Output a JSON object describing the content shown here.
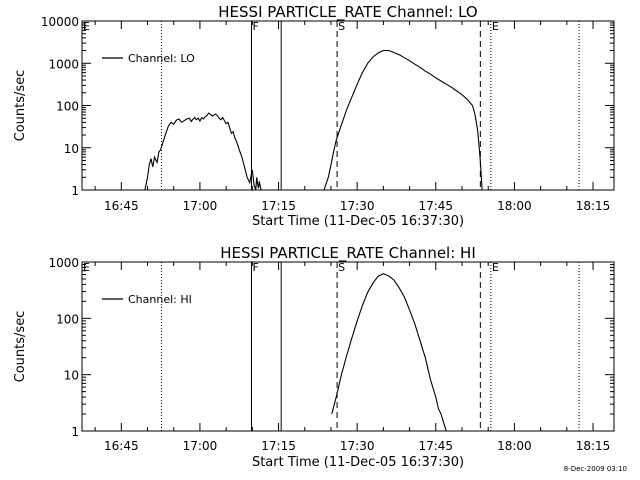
{
  "footer_stamp": "8-Dec-2009 03:10",
  "chart_data": [
    {
      "type": "line",
      "title": "HESSI PARTICLE_RATE Channel: LO",
      "xlabel": "Start Time (11-Dec-05 16:37:30)",
      "ylabel": "Counts/sec",
      "yscale": "log",
      "ylim": [
        1,
        10000
      ],
      "xlim": [
        "16:37:30",
        "18:19:00"
      ],
      "xticks": [
        "16:45",
        "17:00",
        "17:15",
        "17:30",
        "17:45",
        "18:00",
        "18:15"
      ],
      "yticks": [
        "1",
        "10",
        "100",
        "1000",
        "10000"
      ],
      "legend": {
        "position": "top-left",
        "entries": [
          "Channel: LO"
        ]
      },
      "markers": [
        {
          "time": "16:37:30",
          "label": "E",
          "style": "dotted"
        },
        {
          "time": "16:52:40",
          "label": "",
          "style": "dotted"
        },
        {
          "time": "17:09:50",
          "label": "F",
          "style": "solid"
        },
        {
          "time": "17:15:30",
          "label": "",
          "style": "solid"
        },
        {
          "time": "17:26:10",
          "label": "S",
          "style": "dashed"
        },
        {
          "time": "17:53:30",
          "label": "",
          "style": "dashed"
        },
        {
          "time": "17:55:30",
          "label": "E",
          "style": "dotted"
        },
        {
          "time": "18:12:20",
          "label": "",
          "style": "dotted"
        }
      ],
      "series": [
        {
          "name": "Channel: LO",
          "segments": [
            {
              "x": [
                "16:49:30",
                "16:50:00",
                "16:50:20",
                "16:50:40",
                "16:51:00",
                "16:51:20",
                "16:51:50",
                "16:52:10",
                "16:52:30",
                "16:53:00",
                "16:53:30",
                "16:54:00",
                "16:54:30",
                "16:55:00",
                "16:55:30",
                "16:56:00",
                "16:56:30",
                "16:57:00",
                "16:57:30",
                "16:58:00",
                "16:58:20",
                "16:58:40",
                "16:59:00",
                "16:59:20",
                "16:59:40",
                "17:00:00",
                "17:00:20",
                "17:00:40",
                "17:01:00",
                "17:01:20",
                "17:01:40",
                "17:02:00",
                "17:02:20",
                "17:02:40",
                "17:03:00",
                "17:03:20",
                "17:03:40",
                "17:04:00",
                "17:04:20",
                "17:04:40",
                "17:05:00",
                "17:05:20",
                "17:05:40",
                "17:06:00",
                "17:06:20",
                "17:06:40",
                "17:07:00",
                "17:07:30",
                "17:08:00",
                "17:08:30",
                "17:09:00",
                "17:09:30",
                "17:10:00",
                "17:10:20",
                "17:10:40",
                "17:10:50",
                "17:11:00",
                "17:11:10",
                "17:11:20",
                "17:11:40"
              ],
              "y": [
                1,
                2,
                4,
                5.5,
                3.5,
                6,
                4.5,
                8,
                9,
                14,
                22,
                33,
                40,
                36,
                45,
                48,
                40,
                44,
                48,
                50,
                42,
                47,
                52,
                46,
                50,
                43,
                52,
                48,
                54,
                58,
                66,
                62,
                56,
                60,
                63,
                57,
                50,
                46,
                52,
                44,
                37,
                40,
                30,
                22,
                24,
                17,
                14,
                9,
                6,
                3.5,
                2,
                1.5,
                3,
                1.3,
                1,
                2,
                1.4,
                1.1,
                1.6,
                1
              ]
            },
            {
              "x": [
                "17:23:40",
                "17:24:30",
                "17:25:00",
                "17:25:30",
                "17:26:00",
                "17:27:00",
                "17:28:00",
                "17:29:00",
                "17:30:00",
                "17:31:00",
                "17:32:00",
                "17:33:00",
                "17:34:00",
                "17:35:00",
                "17:36:00",
                "17:37:00",
                "17:38:00",
                "17:39:00",
                "17:40:00",
                "17:41:00",
                "17:42:00",
                "17:43:00",
                "17:44:00",
                "17:45:00",
                "17:46:00",
                "17:47:00",
                "17:48:00",
                "17:49:00",
                "17:50:00",
                "17:51:00",
                "17:52:00",
                "17:52:30",
                "17:53:00",
                "17:53:30",
                "17:53:50"
              ],
              "y": [
                1,
                2,
                4,
                8,
                15,
                35,
                80,
                160,
                320,
                600,
                1000,
                1400,
                1750,
                2000,
                2000,
                1800,
                1600,
                1350,
                1150,
                950,
                800,
                650,
                550,
                450,
                380,
                320,
                270,
                220,
                180,
                140,
                100,
                60,
                25,
                5,
                1
              ]
            }
          ]
        }
      ]
    },
    {
      "type": "line",
      "title": "HESSI PARTICLE_RATE Channel: HI",
      "xlabel": "Start Time (11-Dec-05 16:37:30)",
      "ylabel": "Counts/sec",
      "yscale": "log",
      "ylim": [
        1,
        1000
      ],
      "xlim": [
        "16:37:30",
        "18:19:00"
      ],
      "xticks": [
        "16:45",
        "17:00",
        "17:15",
        "17:30",
        "17:45",
        "18:00",
        "18:15"
      ],
      "yticks": [
        "1",
        "10",
        "100",
        "1000"
      ],
      "legend": {
        "position": "top-left",
        "entries": [
          "Channel: HI"
        ]
      },
      "markers": [
        {
          "time": "16:37:30",
          "label": "E",
          "style": "dotted"
        },
        {
          "time": "16:52:40",
          "label": "",
          "style": "dotted"
        },
        {
          "time": "17:09:50",
          "label": "F",
          "style": "solid"
        },
        {
          "time": "17:15:30",
          "label": "",
          "style": "solid"
        },
        {
          "time": "17:26:10",
          "label": "S",
          "style": "dashed"
        },
        {
          "time": "17:53:30",
          "label": "",
          "style": "dashed"
        },
        {
          "time": "17:55:30",
          "label": "E",
          "style": "dotted"
        },
        {
          "time": "18:12:20",
          "label": "",
          "style": "dotted"
        }
      ],
      "series": [
        {
          "name": "Channel: HI",
          "segments": [
            {
              "x": [
                "17:25:10",
                "17:26:00",
                "17:27:00",
                "17:28:00",
                "17:29:00",
                "17:30:00",
                "17:31:00",
                "17:32:00",
                "17:33:00",
                "17:34:00",
                "17:35:00",
                "17:36:00",
                "17:37:00",
                "17:38:00",
                "17:39:00",
                "17:40:00",
                "17:41:00",
                "17:42:00",
                "17:43:00",
                "17:44:00",
                "17:45:00",
                "17:45:30",
                "17:46:00",
                "17:46:30",
                "17:47:00"
              ],
              "y": [
                2,
                4,
                10,
                22,
                45,
                90,
                170,
                290,
                420,
                560,
                620,
                570,
                480,
                350,
                240,
                140,
                80,
                40,
                20,
                8,
                4,
                2.5,
                2,
                1.4,
                1
              ]
            }
          ]
        }
      ]
    }
  ]
}
